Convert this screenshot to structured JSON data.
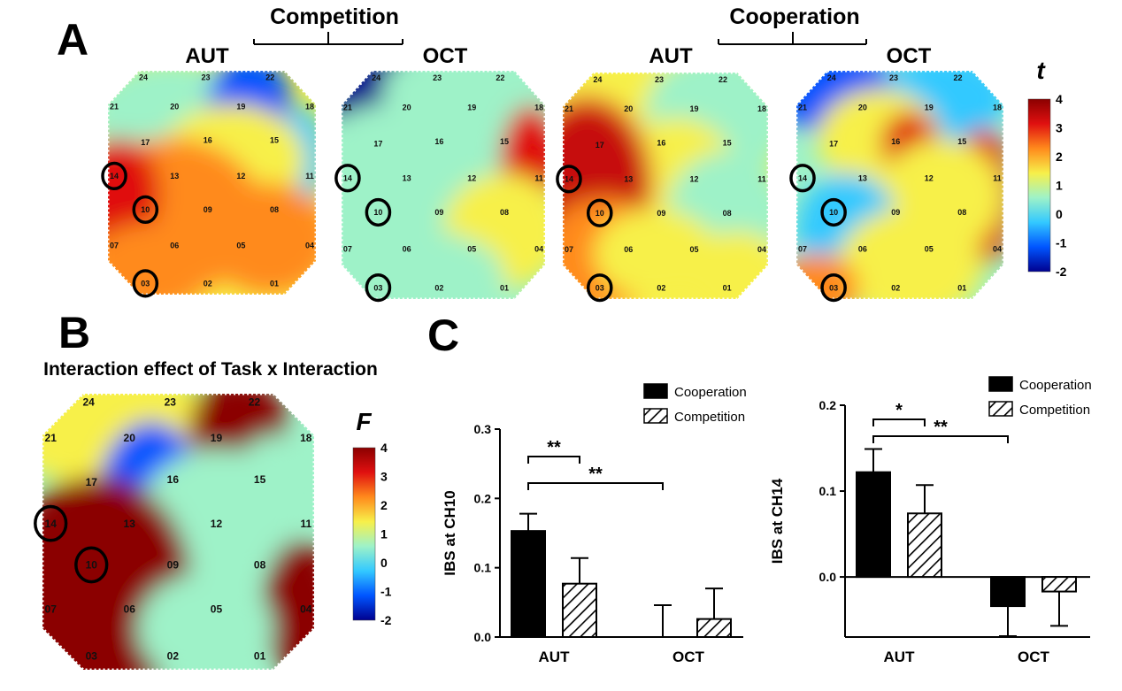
{
  "panel_labels": {
    "a": "A",
    "b": "B",
    "c": "C"
  },
  "panel_a": {
    "groups": [
      {
        "label": "Competition",
        "conditions": [
          "AUT",
          "OCT"
        ]
      },
      {
        "label": "Cooperation",
        "conditions": [
          "AUT",
          "OCT"
        ]
      }
    ],
    "colorbar": {
      "symbol": "t",
      "ticks": [
        "4",
        "3",
        "2",
        "1",
        "0",
        "-1",
        "-2"
      ],
      "min": -2,
      "max": 4
    },
    "highlighted_channels": [
      "14",
      "10",
      "03"
    ]
  },
  "panel_b": {
    "title": "Interaction effect of Task x Interaction",
    "colorbar": {
      "symbol": "F",
      "ticks": [
        "4",
        "3",
        "2",
        "1",
        "0",
        "-1",
        "-2"
      ],
      "min": -2,
      "max": 4
    },
    "highlighted_channels": [
      "14",
      "10"
    ]
  },
  "channels": [
    "24",
    "23",
    "22",
    "21",
    "20",
    "19",
    "18",
    "17",
    "16",
    "15",
    "14",
    "13",
    "12",
    "11",
    "10",
    "09",
    "08",
    "07",
    "06",
    "05",
    "04",
    "03",
    "02",
    "01"
  ],
  "colors": {
    "cooperation_bar": "#000000",
    "competition_bar": "hatched",
    "colormap": [
      "#00008f",
      "#0055ff",
      "#33c9ff",
      "#9ef2c8",
      "#f7f04a",
      "#ff8a1c",
      "#e01010",
      "#8b0000"
    ]
  },
  "chart_data": [
    {
      "type": "bar",
      "categories": [
        "AUT",
        "OCT"
      ],
      "series": [
        {
          "name": "Cooperation",
          "values": [
            0.153,
            0.0
          ],
          "errors": [
            0.025,
            0.046
          ]
        },
        {
          "name": "Competition",
          "values": [
            0.077,
            0.026
          ],
          "errors": [
            0.037,
            0.044
          ]
        }
      ],
      "ylabel": "IBS at CH10",
      "ylim": [
        0,
        0.3
      ],
      "yticks": [
        "0.3",
        "0.2",
        "0.1",
        "0.0"
      ],
      "legend": "top-right",
      "significance": [
        {
          "label": "**",
          "between": "AUT Cooperation vs AUT Competition"
        },
        {
          "label": "**",
          "between": "AUT Cooperation vs OCT Cooperation"
        }
      ]
    },
    {
      "type": "bar",
      "categories": [
        "AUT",
        "OCT"
      ],
      "series": [
        {
          "name": "Cooperation",
          "values": [
            0.122,
            -0.034
          ],
          "errors": [
            0.027,
            0.035
          ]
        },
        {
          "name": "Competition",
          "values": [
            0.074,
            -0.017
          ],
          "errors": [
            0.033,
            0.04
          ]
        }
      ],
      "ylabel": "IBS at CH14",
      "ylim": [
        -0.07,
        0.2
      ],
      "yticks": [
        "0.2",
        "0.1",
        "0.0"
      ],
      "legend": "top-right",
      "significance": [
        {
          "label": "*",
          "between": "AUT Cooperation vs AUT Competition"
        },
        {
          "label": "**",
          "between": "AUT Cooperation vs OCT Cooperation"
        }
      ]
    }
  ]
}
